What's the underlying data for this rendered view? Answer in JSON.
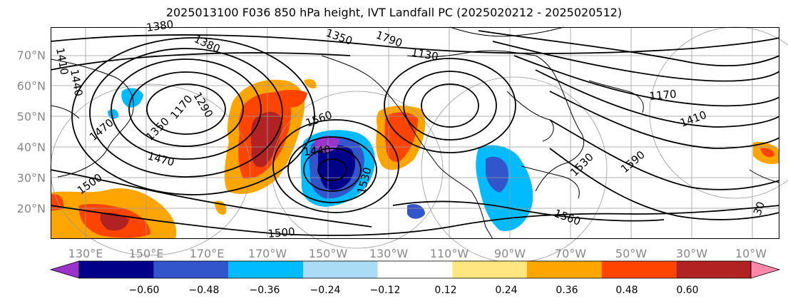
{
  "title": "2025013100 F036 850 hPa height, IVT Landfall PC (2025020212 - 2025020512)",
  "lat_labels": [
    "70°N",
    "60°N",
    "50°N",
    "40°N",
    "30°N",
    "20°N"
  ],
  "lon_labels": [
    "130°E",
    "150°E",
    "170°E",
    "170°W",
    "150°W",
    "130°W",
    "110°W",
    "90°W",
    "70°W",
    "50°W",
    "30°W",
    "10°W"
  ],
  "contour_labels": [
    "1380",
    "1380",
    "1350",
    "1790",
    "1440",
    "1410",
    "1470",
    "1290",
    "1170",
    "1350",
    "1500",
    "1470",
    "1560",
    "1440",
    "1530",
    "1500",
    "1530",
    "1590",
    "1560",
    "1170",
    "1410",
    "1130",
    "30"
  ],
  "colorbar": {
    "ticks": [
      "−0.60",
      "−0.48",
      "−0.36",
      "−0.24",
      "−0.12",
      "0.12",
      "0.24",
      "0.36",
      "0.48",
      "0.60"
    ],
    "colors": [
      "#9933cc",
      "#000088",
      "#3355cc",
      "#00bbff",
      "#aaddf5",
      "#ffffff",
      "#ffe680",
      "#ffa500",
      "#ff4400",
      "#b22222",
      "#ff88aa"
    ]
  }
}
